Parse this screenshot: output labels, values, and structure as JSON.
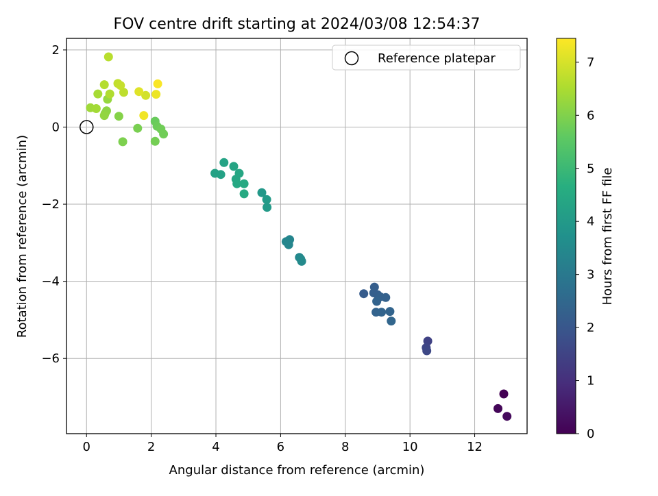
{
  "chart_data": {
    "type": "scatter",
    "title": "FOV centre drift starting at 2024/03/08 12:54:37",
    "xlabel": "Angular distance from reference (arcmin)",
    "ylabel": "Rotation from reference (arcmin)",
    "xlim": [
      -0.62,
      13.62
    ],
    "ylim": [
      -7.95,
      2.3
    ],
    "x_ticks": [
      0,
      2,
      4,
      6,
      8,
      10,
      12
    ],
    "y_ticks": [
      2,
      0,
      -2,
      -4,
      -6
    ],
    "x_tick_labels": [
      "0",
      "2",
      "4",
      "6",
      "8",
      "10",
      "12"
    ],
    "y_tick_labels": [
      "2",
      "0",
      "−2",
      "−4",
      "−6"
    ],
    "grid": true,
    "legend_position": "top-right",
    "colorbar": {
      "label": "Hours from first FF file",
      "min": 0,
      "max": 7.45,
      "ticks": [
        0,
        1,
        2,
        3,
        4,
        5,
        6,
        7
      ],
      "tick_labels": [
        "0",
        "1",
        "2",
        "3",
        "4",
        "5",
        "6",
        "7"
      ],
      "colormap": "viridis"
    },
    "series": [
      {
        "name": "Reference platepar",
        "marker": "open-circle",
        "points": [
          [
            0,
            0
          ]
        ]
      },
      {
        "marker": "filled-circle",
        "color_by": "hours",
        "points": [
          [
            12.9,
            -6.92,
            0.0
          ],
          [
            12.72,
            -7.3,
            0.1
          ],
          [
            13.0,
            -7.5,
            0.2
          ],
          [
            10.55,
            -5.55,
            1.45
          ],
          [
            10.5,
            -5.72,
            1.55
          ],
          [
            10.52,
            -5.8,
            1.6
          ],
          [
            8.57,
            -4.32,
            2.15
          ],
          [
            8.9,
            -4.15,
            2.2
          ],
          [
            8.88,
            -4.3,
            2.25
          ],
          [
            9.0,
            -4.35,
            2.25
          ],
          [
            9.08,
            -4.4,
            2.3
          ],
          [
            9.25,
            -4.42,
            2.3
          ],
          [
            8.97,
            -4.52,
            2.35
          ],
          [
            8.95,
            -4.8,
            2.35
          ],
          [
            9.12,
            -4.8,
            2.4
          ],
          [
            9.38,
            -4.78,
            2.4
          ],
          [
            9.42,
            -5.03,
            2.45
          ],
          [
            6.28,
            -2.92,
            3.35
          ],
          [
            6.17,
            -2.97,
            3.4
          ],
          [
            6.25,
            -3.05,
            3.4
          ],
          [
            6.58,
            -3.38,
            3.45
          ],
          [
            6.62,
            -3.42,
            3.5
          ],
          [
            6.65,
            -3.48,
            3.5
          ],
          [
            5.42,
            -1.7,
            3.95
          ],
          [
            5.57,
            -1.88,
            4.0
          ],
          [
            5.58,
            -2.08,
            4.0
          ],
          [
            3.97,
            -1.2,
            4.25
          ],
          [
            4.15,
            -1.23,
            4.25
          ],
          [
            4.25,
            -0.92,
            4.3
          ],
          [
            4.55,
            -1.02,
            4.35
          ],
          [
            4.72,
            -1.2,
            4.4
          ],
          [
            4.62,
            -1.35,
            4.4
          ],
          [
            4.65,
            -1.47,
            4.45
          ],
          [
            4.87,
            -1.47,
            4.5
          ],
          [
            4.87,
            -1.73,
            4.5
          ],
          [
            2.12,
            0.15,
            5.7
          ],
          [
            2.18,
            0.02,
            5.75
          ],
          [
            2.3,
            -0.05,
            5.8
          ],
          [
            2.38,
            -0.18,
            5.8
          ],
          [
            2.12,
            -0.37,
            5.85
          ],
          [
            1.58,
            -0.03,
            5.9
          ],
          [
            1.12,
            -0.38,
            5.95
          ],
          [
            1.0,
            0.28,
            6.05
          ],
          [
            0.57,
            0.35,
            6.1
          ],
          [
            0.62,
            0.42,
            6.15
          ],
          [
            0.55,
            0.3,
            6.2
          ],
          [
            0.65,
            0.72,
            6.25
          ],
          [
            0.12,
            0.5,
            6.35
          ],
          [
            0.3,
            0.48,
            6.4
          ],
          [
            0.35,
            0.86,
            6.45
          ],
          [
            0.72,
            0.86,
            6.55
          ],
          [
            0.55,
            1.1,
            6.6
          ],
          [
            0.68,
            1.82,
            6.65
          ],
          [
            1.15,
            0.9,
            6.7
          ],
          [
            0.97,
            1.13,
            6.75
          ],
          [
            1.05,
            1.08,
            6.8
          ],
          [
            1.83,
            0.82,
            6.95
          ],
          [
            1.62,
            0.92,
            7.1
          ],
          [
            2.15,
            0.85,
            7.25
          ],
          [
            1.77,
            0.3,
            7.3
          ],
          [
            2.2,
            1.12,
            7.4
          ]
        ]
      }
    ]
  }
}
